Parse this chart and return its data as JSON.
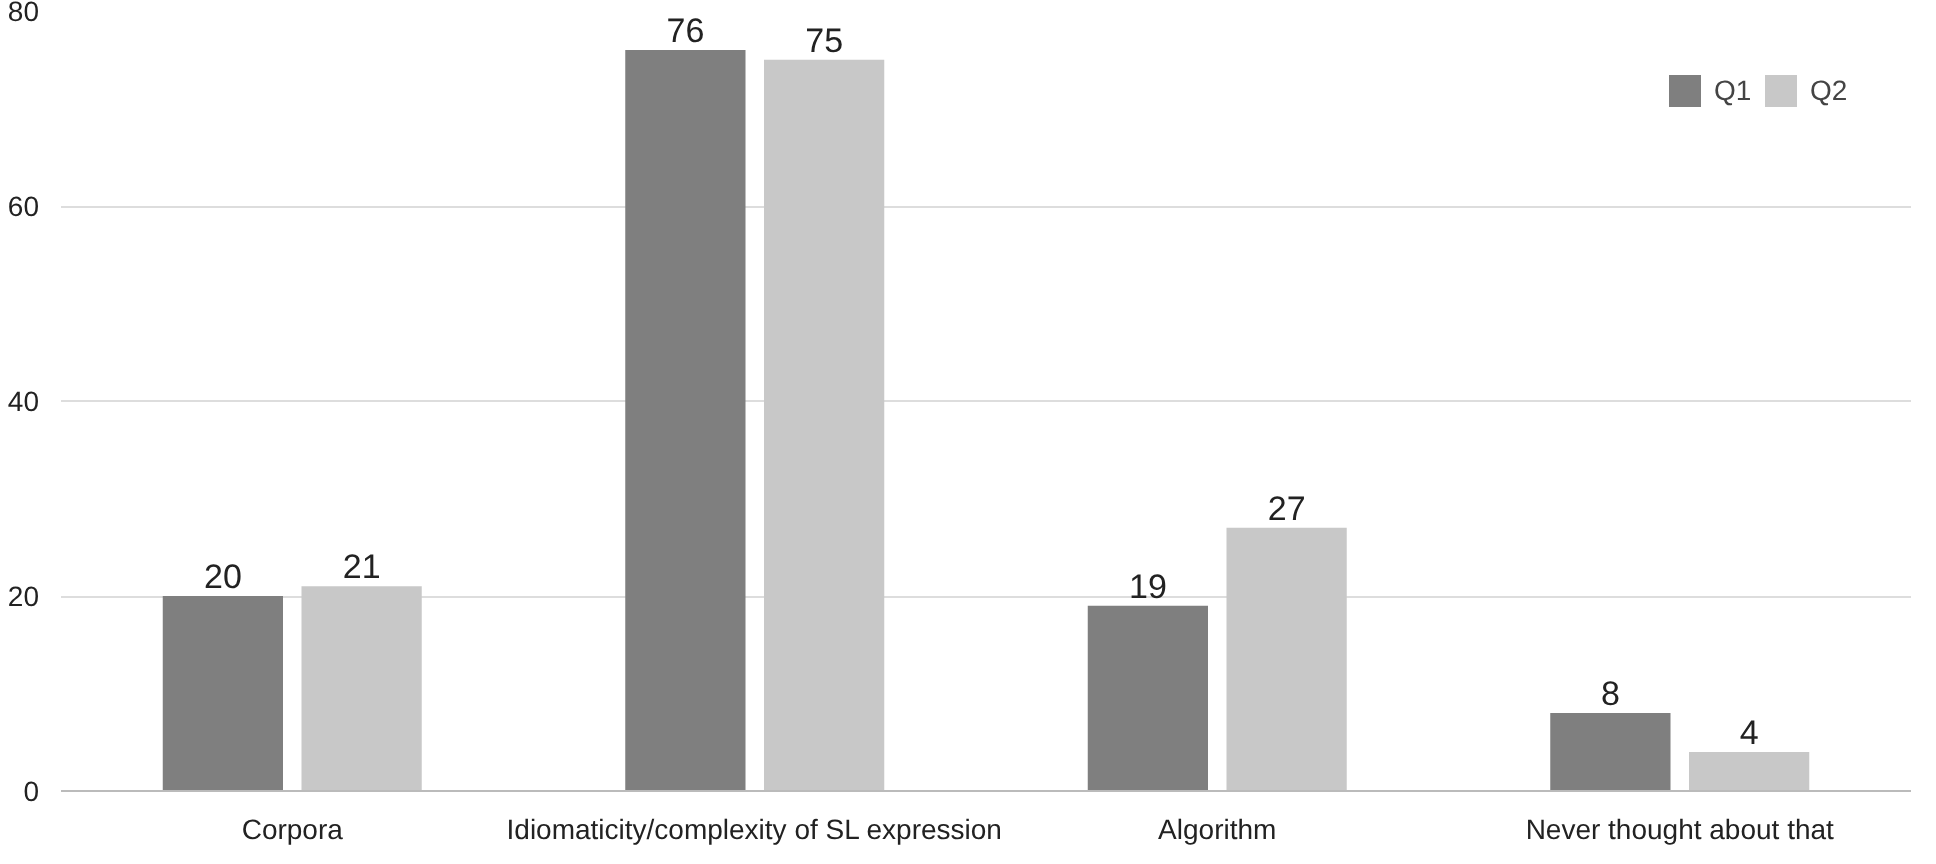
{
  "chart_data": {
    "type": "bar",
    "categories": [
      "Corpora",
      "Idiomaticity/complexity of SL expression",
      "Algorithm",
      "Never thought about that"
    ],
    "series": [
      {
        "name": "Q1",
        "color": "#7f7f7f",
        "values": [
          20,
          76,
          19,
          8
        ]
      },
      {
        "name": "Q2",
        "color": "#c8c8c8",
        "values": [
          21,
          75,
          27,
          4
        ]
      }
    ],
    "ylim": [
      0,
      80
    ],
    "yticks": [
      0,
      20,
      40,
      60,
      80
    ],
    "grid": "y",
    "legend": "top right",
    "data_labels": true
  }
}
